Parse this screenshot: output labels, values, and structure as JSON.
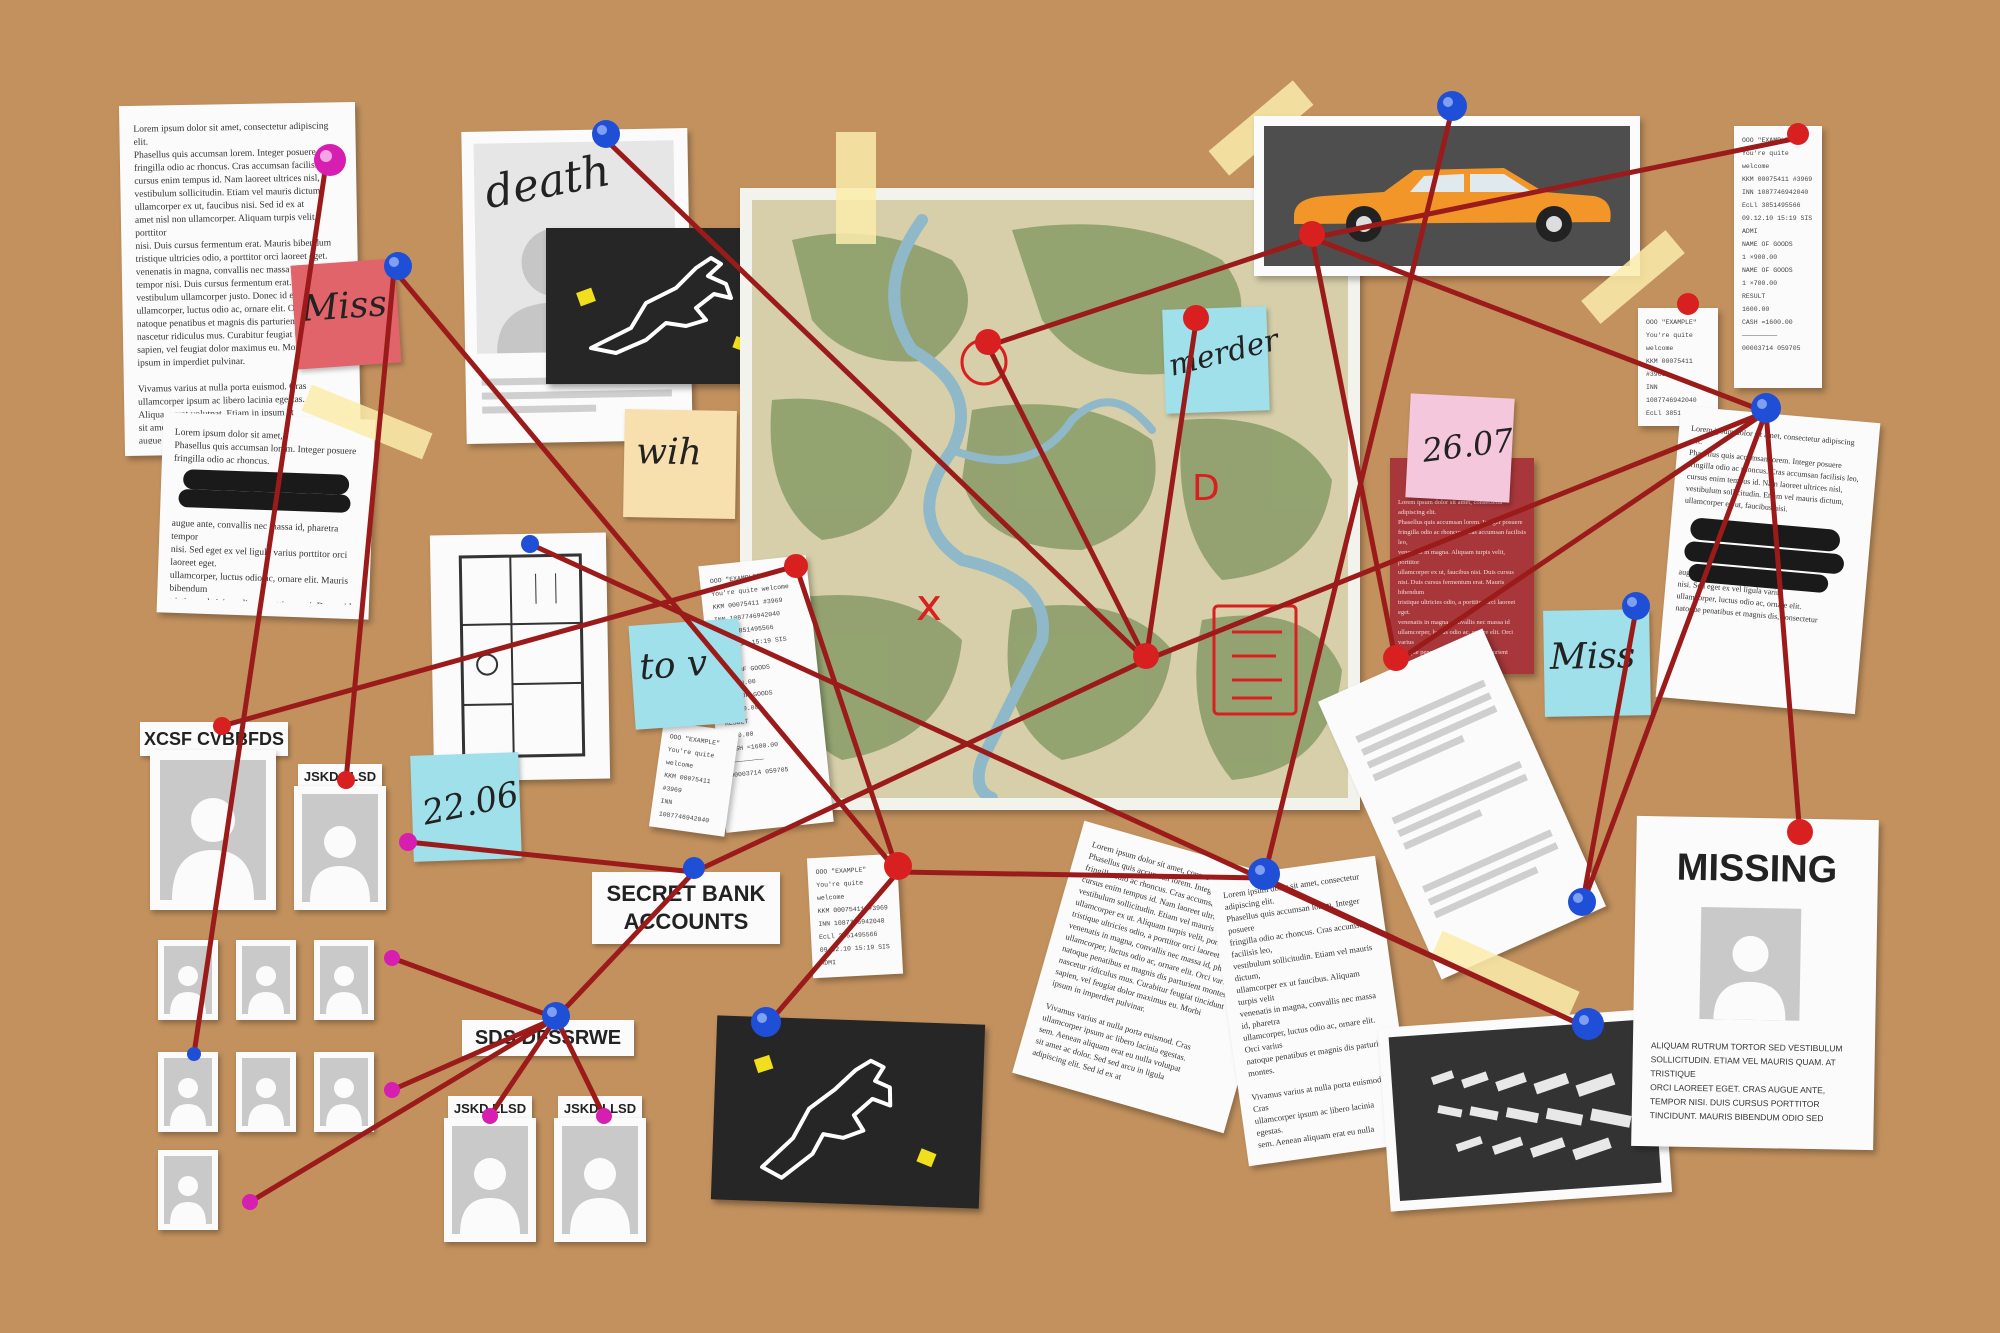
{
  "texts": {
    "lorem_doc_1": "Lorem ipsum dolor sit amet, consectetur adipiscing elit.\nPhasellus quis accumsan lorem. Integer posuere\nfringilla odio ac rhoncus. Cras accumsan facilisis leo,\ncursus enim tempus id. Nam laoreet ultrices nisl,\nvestibulum sollicitudin. Etiam vel mauris dictum,\nullamcorper ex ut, faucibus nisi. Sed id ex at\namet nisl non ullamcorper. Aliquam turpis velit, porttitor\nnisi. Duis cursus fermentum erat. Mauris bibendum\ntristique ultricies odio, a porttitor orci laoreet eget.\nvenenatis in magna, convallis nec massa id, pharetra\ntempor nisi. Duis cursus fermentum erat. Mauris\nvestibulum ullamcorper justo. Donec id enim\nullamcorper, luctus odio ac, ornare elit. Orci varius\nnatoque penatibus et magnis dis parturient montes.\nnascetur ridiculus mus. Curabitur feugiat tincidunt\nsapien, vel feugiat dolor maximus eu. Morbi\nipsum in imperdiet pulvinar.\n\nVivamus varius at nulla porta euismod. Cras\nullamcorper ipsum ac libero lacinia egestas.\nAliquam erat volutpat. Etiam in ipsum at\nsit amet ac dolor. Sed sed arcu in ligula\naugue ante, convallis nec massa id\nadipiscing elit.",
    "lorem_doc_2": "Lorem ipsum dolor sit amet,\nPhasellus quis accumsan lorem. Integer posuere\nfringilla odio ac rhoncus.\n\n\n\n\naugue ante, convallis nec massa id, pharetra tempor\nnisi. Sed eget ex vel ligula varius porttitor orci laoreet eget.\nullamcorper, luctus odio ac, ornare elit. Mauris bibendum\ntristique ultricies odio, a porttitor orci. Donec id enim\nnatoque penatibus",
    "lorem_doc_torn": "Lorem ipsum dolor sit amet, consectetur adipiscing elit.\nPhasellus quis accumsan lorem. Integer posuere\nfringilla odio ac rhoncus. Cras accumsan facilisis leo,\ncursus enim tempus id. Nam laoreet ultrices nisl,\nvestibulum sollicitudin. Etiam vel mauris dictum,\nullamcorper ex ut. Aliquam turpis velit, porttitor\ntristique ultricies odio, a porttitor orci laoreet eget.\nvenenatis in magna, convallis nec massa id, pharetra\nullamcorper, luctus odio ac, ornare elit. Orci varius\nnatoque penatibus et magnis dis parturient montes.\nnascetur ridiculus mus. Curabitur feugiat tincidunt\nsapien, vel feugiat dolor maximus eu. Morbi\nipsum in imperdiet pulvinar.\n\nVivamus varius at nulla porta euismod. Cras\nullamcorper ipsum ac libero lacinia egestas.\nsem. Aenean aliquam erat eu nulla volutpat\nsit amet ac dolor. Sed sed arcu in ligula\nadipiscing elit. Sed id ex at",
    "lorem_doc_torn_2": "Lorem ipsum dolor sit amet, consectetur adipiscing elit.\nPhasellus quis accumsan lorem. Integer posuere\nfringilla odio ac rhoncus. Cras accumsan facilisis leo,\nvestibulum sollicitudin. Etiam vel mauris dictum,\nullamcorper ex ut faucibus. Aliquam turpis velit\nvenenatis in magna, convallis nec massa id, pharetra\nullamcorper, luctus odio ac, ornare elit. Orci varius\nnatoque penatibus et magnis dis parturient montes.\n\nVivamus varius at nulla porta euismod. Cras\nullamcorper ipsum ac libero lacinia egestas.\nsem. Aenean aliquam erat eu nulla volutpat\nadipiscing elit. Sed id ex at",
    "lorem_doc_right": "Lorem ipsum dolor sit amet, consectetur adipiscing elit.\nPhasellus quis accumsan lorem. Integer posuere\nfringilla odio ac rhoncus. Cras accumsan facilisis leo,\ncursus enim tempus id. Nam laoreet ultrices nisl,\nvestibulum sollicitudin. Etiam vel mauris dictum,\nullamcorper ex ut, faucibus nisi.\n\n\n\n\n\naugue ante, convallis nec massa id, placerat\nnisi. Sed eget ex vel ligula varius\nullamcorper, luctus odio ac, ornare elit.\nnatoque penatibus et magnis dis, consectetur",
    "lorem_red_note": "Lorem ipsum dolor sit amet, consectetur adipiscing elit.\nPhasellus quis accumsan lorem. Integer posuere\nfringilla odio ac rhoncus. Cras accumsan facilisis leo,\nvenenatis in magna. Aliquam turpis velit, porttitor\nullamcorper ex ut, faucibus nisi. Duis cursus\nnisi. Duis cursus fermentum erat. Mauris bibendum\ntristique ultricies odio, a porttitor orci laoreet eget.\nvenenatis in magna, convallis nec massa id\nullamcorper, luctus odio ac, ornare elit. Orci varius\nnatoque penatibus et magnis dis parturient montes.\n\nVivamus varius at nulla porta euismod. Cras\nullamcorper ipsum ac libero lacinia egestas.\nAliquam erat volutpat. Etiam in ipsum at\nsit amet ac dolor. Sed sed arcu in ligula\nadipiscing elit.",
    "receipt_1": "OOO \"EXAMPLE\"\nYou're quite welcome\nKKM 00075411 #3969\nINN 1087746942040\nEcLl 3851495566\n09.12.10 15:19 SIS\nADMI\nNAME OF GOODS\n1 ×900.00\nNAME OF GOODS\n1 ×700.00\nRESULT\n1600.00\nCASH =1600.00\n—————————\n00003714 059705",
    "receipt_2": "OOO \"EXAMPLE\"\nYou're quite welcome\nKKM 00075411 #3969\nINN 1087746942040\nEcLl 3851495566\n09.12.10 15:19 SIS\nADMI",
    "missing_body": "ALIQUAM RUTRUM TORTOR SED VESTIBULUM\nSOLLICITUDIN. ETIAM VEL MAURIS QUAM. AT\nTRISTIQUE\nORCI LAOREET EGET. CRAS AUGUE ANTE,\nTEMPOR NISI. DUIS CURSUS PORTTITOR\nTINCIDUNT. MAURIS BIBENDUM ODIO SED"
  },
  "notes": {
    "death": "death",
    "miss_pink": "Miss",
    "wih": "wih",
    "merder": "merder",
    "date_1": "26.07",
    "to_v": "to v",
    "date_2": "22.06",
    "miss_blue": "Miss"
  },
  "labels": {
    "xcsf": "XCSF CVBBFDS",
    "jskd_1": "JSKD LLSD",
    "secret_bank": "SECRET BANK\nACCOUNTS",
    "sds": "SDS  DFSSRWE",
    "jskd_2": "JSKD LLSD",
    "jskd_3": "JSKD LLSD"
  },
  "map": {
    "marks": {
      "letter_d": "D",
      "cross": "x"
    }
  },
  "missing_poster": {
    "title": "MISSING"
  },
  "colors": {
    "board": "#c2915e",
    "string": "#9b1b1b",
    "pin_blue": "#1f4fd6",
    "pin_red": "#d92020",
    "pin_magenta": "#d61fb0",
    "note_red": "#e0646a",
    "note_blue": "#9fe0ea",
    "note_pink": "#f4c7dd",
    "note_cream": "#f7dfae",
    "car_orange": "#f2962a"
  }
}
